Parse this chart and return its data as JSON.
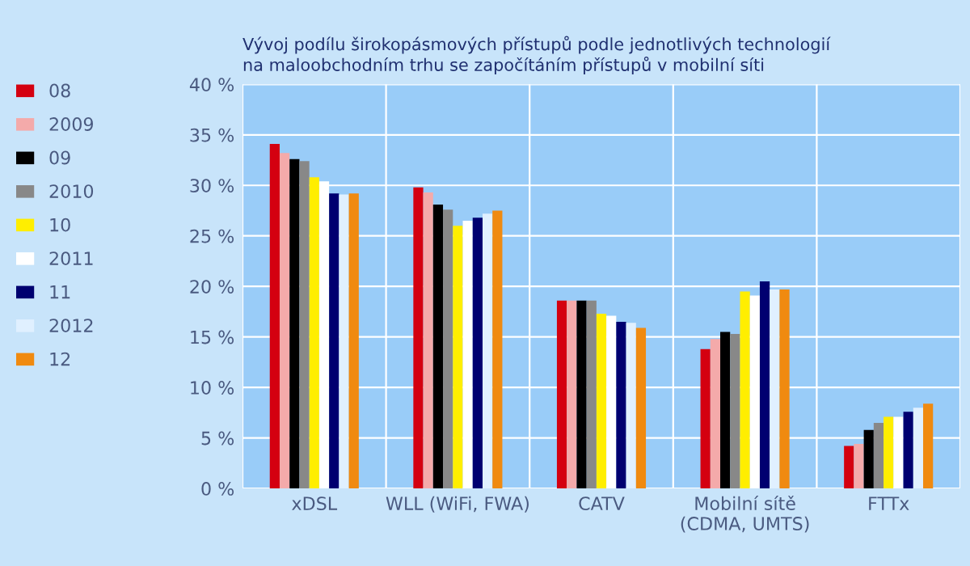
{
  "chart_data": {
    "type": "bar",
    "title": "Vývoj podílu širokopásmových přístupů podle jednotlivých technologií\nna maloobchodním trhu se započítáním přístupů v mobilní síti",
    "categories": [
      "xDSL",
      "WLL (WiFi, FWA)",
      "CATV",
      "Mobilní sítě\n(CDMA, UMTS)",
      "FTTx"
    ],
    "series": [
      {
        "name": "08",
        "color": "#d40010",
        "values": [
          34.1,
          29.8,
          18.6,
          13.8,
          4.2
        ]
      },
      {
        "name": "2009",
        "color": "#f4aaaa",
        "values": [
          33.2,
          29.3,
          18.6,
          14.8,
          4.4
        ]
      },
      {
        "name": "09",
        "color": "#000000",
        "values": [
          32.6,
          28.1,
          18.6,
          15.5,
          5.8
        ]
      },
      {
        "name": "2010",
        "color": "#888888",
        "values": [
          32.4,
          27.6,
          18.6,
          15.3,
          6.5
        ]
      },
      {
        "name": "10",
        "color": "#ffee00",
        "values": [
          30.8,
          26.0,
          17.3,
          19.5,
          7.1
        ]
      },
      {
        "name": "2011",
        "color": "#ffffff",
        "values": [
          30.4,
          26.5,
          17.1,
          19.1,
          7.1
        ]
      },
      {
        "name": "11",
        "color": "#000070",
        "values": [
          29.2,
          26.8,
          16.5,
          20.5,
          7.6
        ]
      },
      {
        "name": "2012",
        "color": "#e0f0ff",
        "values": [
          29.1,
          27.2,
          16.4,
          19.7,
          8.0
        ]
      },
      {
        "name": "12",
        "color": "#f08a10",
        "values": [
          29.2,
          27.5,
          15.9,
          19.7,
          8.4
        ]
      }
    ],
    "ylim": [
      0,
      40
    ],
    "yticks": [
      {
        "value": 0,
        "label": "0 %"
      },
      {
        "value": 5,
        "label": "5 %"
      },
      {
        "value": 10,
        "label": "10 %"
      },
      {
        "value": 15,
        "label": "15 %"
      },
      {
        "value": 20,
        "label": "20 %"
      },
      {
        "value": 25,
        "label": "25 %"
      },
      {
        "value": 30,
        "label": "30 %"
      },
      {
        "value": 35,
        "label": "35 %"
      },
      {
        "value": 40,
        "label": "40 %"
      }
    ],
    "grid": true,
    "legend": "left"
  }
}
